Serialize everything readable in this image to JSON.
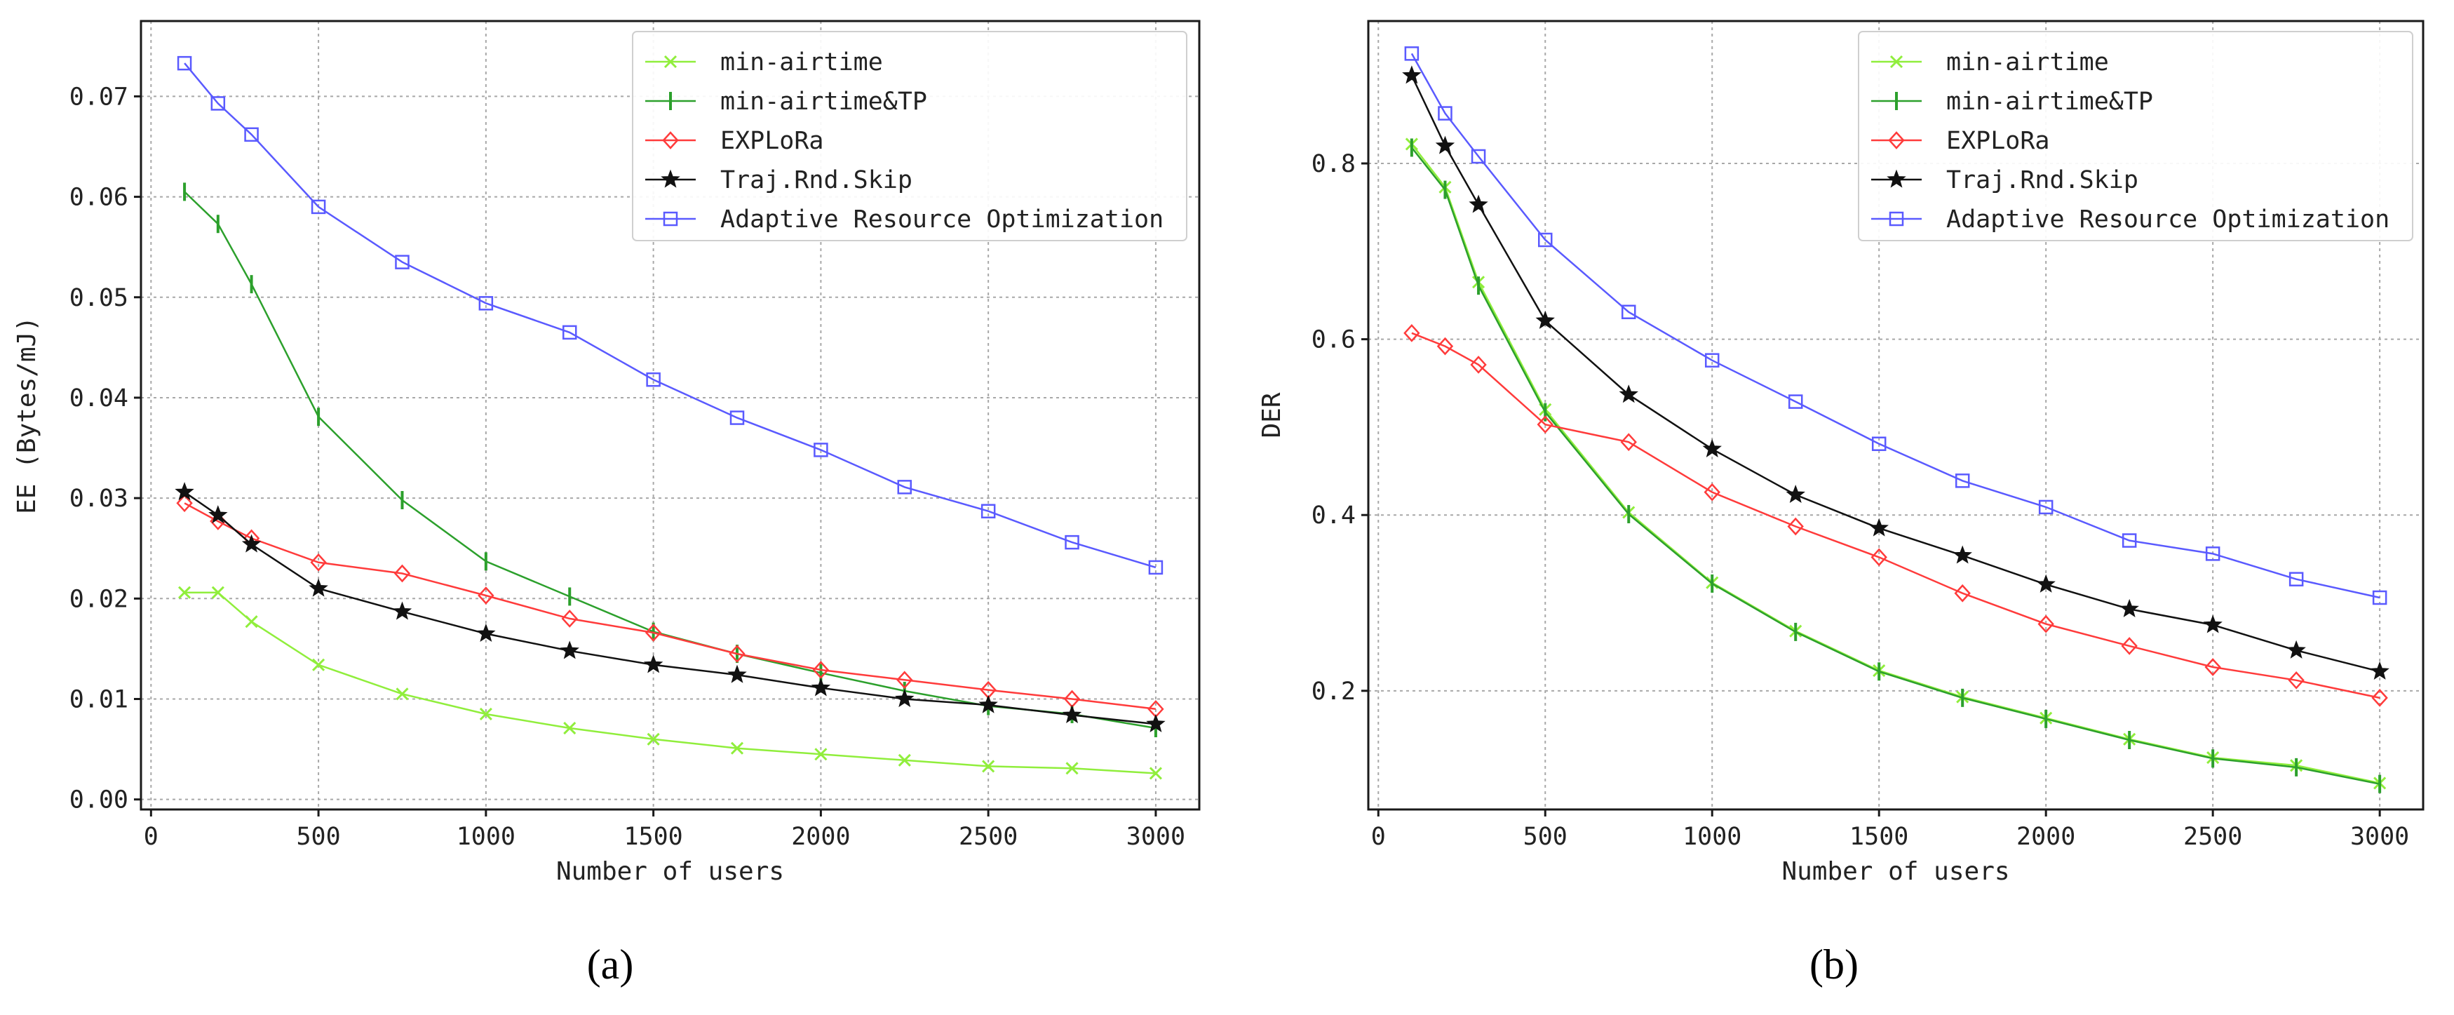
{
  "chart_data": [
    {
      "type": "line",
      "panel_label": "(a)",
      "xlabel": "Number of users",
      "ylabel": "EE (Bytes/mJ)",
      "xlim": [
        -30,
        3130
      ],
      "ylim": [
        -0.001,
        0.0775
      ],
      "xticks": [
        "0",
        "500",
        "1000",
        "1500",
        "2000",
        "2500",
        "3000"
      ],
      "yticks": [
        "0.00",
        "0.01",
        "0.02",
        "0.03",
        "0.04",
        "0.05",
        "0.06",
        "0.07"
      ],
      "grid": true,
      "legend_position": "top-right",
      "x": [
        100,
        200,
        300,
        500,
        750,
        1000,
        1250,
        1500,
        1750,
        2000,
        2250,
        2500,
        2750,
        3000
      ],
      "series": [
        {
          "name": "min-airtime",
          "color": "#90ee3c",
          "marker": "x",
          "values": [
            0.0206,
            0.0206,
            0.0177,
            0.0134,
            0.0105,
            0.0085,
            0.0071,
            0.006,
            0.0051,
            0.0045,
            0.0039,
            0.0033,
            0.0031,
            0.0026
          ]
        },
        {
          "name": "min-airtime&TP",
          "color": "#2ca02c",
          "marker": "vline",
          "values": [
            0.0605,
            0.0573,
            0.0513,
            0.0381,
            0.0298,
            0.0237,
            0.0202,
            0.0167,
            0.0145,
            0.0126,
            0.0108,
            0.0093,
            0.0085,
            0.0071
          ]
        },
        {
          "name": "EXPLoRa",
          "color": "#ff3b3b",
          "marker": "diamond",
          "values": [
            0.0295,
            0.0277,
            0.026,
            0.0236,
            0.0225,
            0.0203,
            0.018,
            0.0166,
            0.0145,
            0.0129,
            0.0119,
            0.0109,
            0.01,
            0.009
          ]
        },
        {
          "name": "Traj.Rnd.Skip",
          "color": "#111111",
          "marker": "star",
          "values": [
            0.0306,
            0.0283,
            0.0254,
            0.021,
            0.0187,
            0.0165,
            0.0148,
            0.0134,
            0.0124,
            0.0111,
            0.01,
            0.0094,
            0.0084,
            0.0075
          ]
        },
        {
          "name": "Adaptive Resource Optimization",
          "color": "#5a5aff",
          "marker": "square",
          "values": [
            0.0733,
            0.0693,
            0.0662,
            0.059,
            0.0535,
            0.0494,
            0.0465,
            0.0418,
            0.038,
            0.0348,
            0.0311,
            0.0287,
            0.0256,
            0.0231
          ]
        }
      ]
    },
    {
      "type": "line",
      "panel_label": "(b)",
      "xlabel": "Number of users",
      "ylabel": "DER",
      "xlim": [
        -30,
        3130
      ],
      "ylim": [
        0.065,
        0.962
      ],
      "xticks": [
        "0",
        "500",
        "1000",
        "1500",
        "2000",
        "2500",
        "3000"
      ],
      "yticks": [
        "0.2",
        "0.4",
        "0.6",
        "0.8"
      ],
      "grid": true,
      "legend_position": "top-right",
      "x": [
        100,
        200,
        300,
        500,
        750,
        1000,
        1250,
        1500,
        1750,
        2000,
        2250,
        2500,
        2750,
        3000
      ],
      "series": [
        {
          "name": "min-airtime",
          "color": "#90ee3c",
          "marker": "x",
          "values": [
            0.822,
            0.773,
            0.665,
            0.52,
            0.403,
            0.323,
            0.268,
            0.223,
            0.193,
            0.169,
            0.145,
            0.124,
            0.115,
            0.095
          ]
        },
        {
          "name": "min-airtime&TP",
          "color": "#2ca02c",
          "marker": "vline",
          "values": [
            0.818,
            0.77,
            0.661,
            0.517,
            0.401,
            0.322,
            0.267,
            0.222,
            0.192,
            0.168,
            0.144,
            0.123,
            0.113,
            0.094
          ]
        },
        {
          "name": "EXPLoRa",
          "color": "#ff3b3b",
          "marker": "diamond",
          "values": [
            0.607,
            0.592,
            0.571,
            0.503,
            0.483,
            0.426,
            0.387,
            0.352,
            0.311,
            0.276,
            0.251,
            0.227,
            0.212,
            0.192
          ]
        },
        {
          "name": "Traj.Rnd.Skip",
          "color": "#111111",
          "marker": "star",
          "values": [
            0.9,
            0.82,
            0.753,
            0.621,
            0.537,
            0.475,
            0.423,
            0.385,
            0.354,
            0.321,
            0.293,
            0.275,
            0.246,
            0.222
          ]
        },
        {
          "name": "Adaptive Resource Optimization",
          "color": "#5a5aff",
          "marker": "square",
          "values": [
            0.925,
            0.857,
            0.808,
            0.713,
            0.631,
            0.576,
            0.529,
            0.481,
            0.439,
            0.409,
            0.371,
            0.356,
            0.327,
            0.306
          ]
        }
      ]
    }
  ]
}
